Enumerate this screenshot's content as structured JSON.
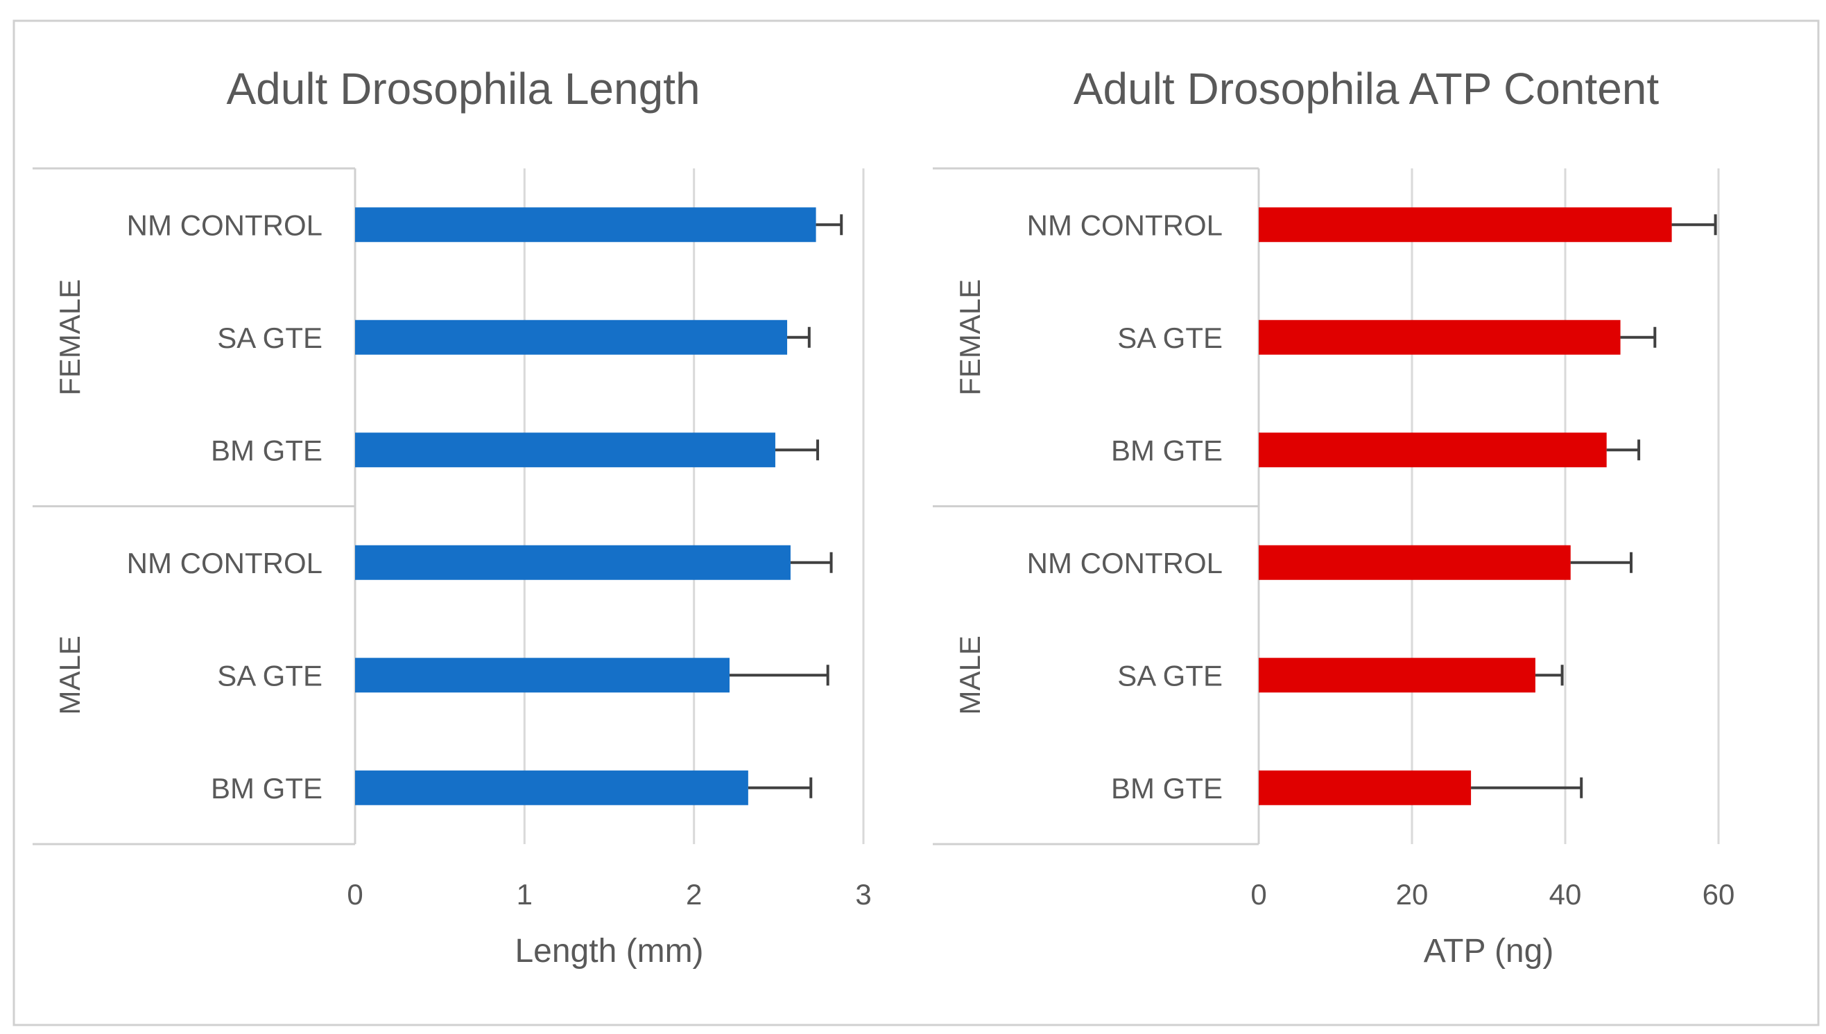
{
  "chart_data": [
    {
      "type": "bar",
      "orientation": "horizontal",
      "title": "Adult Drosophila Length",
      "xlabel": "Length (mm)",
      "ylabel": "",
      "xlim": [
        0,
        3
      ],
      "xticks": [
        "0",
        "1",
        "2",
        "3"
      ],
      "grid": true,
      "color": "#1570C8",
      "groups": [
        {
          "label": "FEMALE",
          "categories": [
            "NM CONTROL",
            "SA GTE",
            "BM GTE"
          ],
          "values": [
            2.72,
            2.55,
            2.48
          ],
          "errors": [
            0.15,
            0.13,
            0.25
          ]
        },
        {
          "label": "MALE",
          "categories": [
            "NM CONTROL",
            "SA GTE",
            "BM GTE"
          ],
          "values": [
            2.57,
            2.21,
            2.32
          ],
          "errors": [
            0.24,
            0.58,
            0.37
          ]
        }
      ]
    },
    {
      "type": "bar",
      "orientation": "horizontal",
      "title": "Adult Drosophila ATP Content",
      "xlabel": "ATP (ng)",
      "ylabel": "",
      "xlim": [
        0,
        60
      ],
      "xticks": [
        "0",
        "20",
        "40",
        "60"
      ],
      "grid": true,
      "color": "#E00000",
      "groups": [
        {
          "label": "FEMALE",
          "categories": [
            "NM CONTROL",
            "SA GTE",
            "BM GTE"
          ],
          "values": [
            53.9,
            47.2,
            45.4
          ],
          "errors": [
            5.7,
            4.5,
            4.2
          ]
        },
        {
          "label": "MALE",
          "categories": [
            "NM CONTROL",
            "SA GTE",
            "BM GTE"
          ],
          "values": [
            40.7,
            36.1,
            27.7
          ],
          "errors": [
            7.9,
            3.5,
            14.4
          ]
        }
      ]
    }
  ]
}
